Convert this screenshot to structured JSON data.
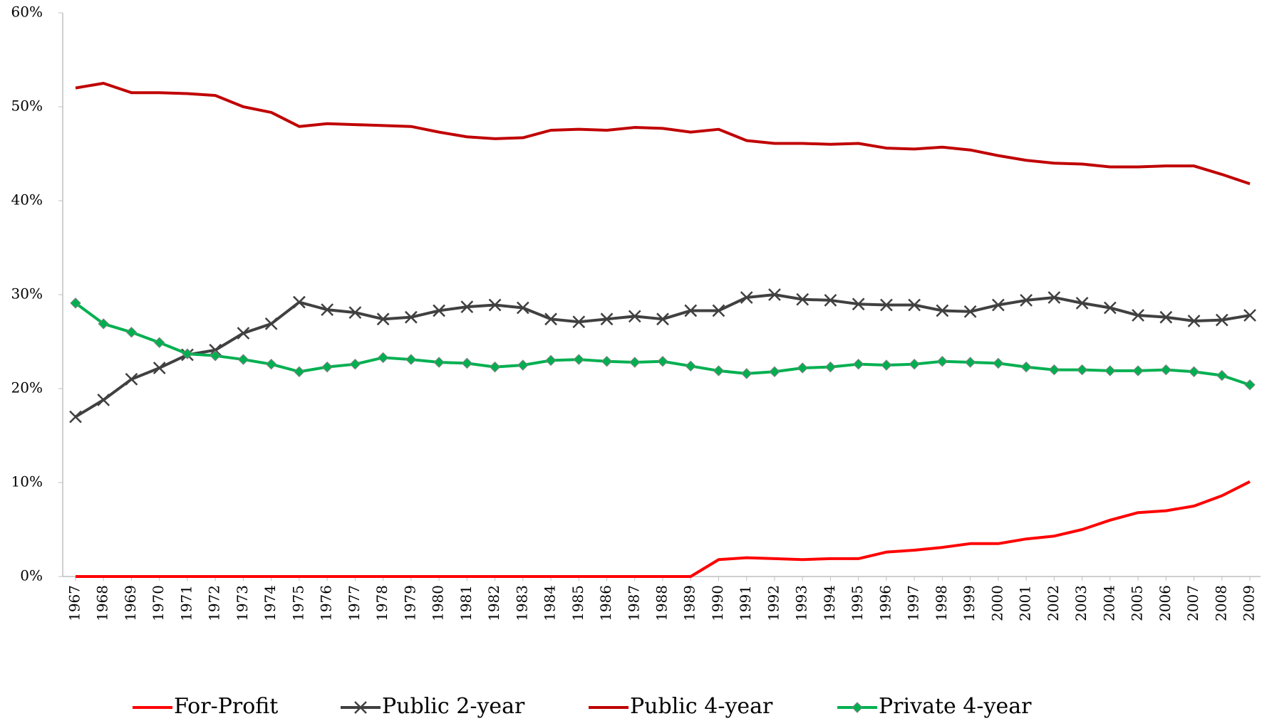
{
  "chart_data": {
    "type": "line",
    "categories": [
      "1967",
      "1968",
      "1969",
      "1970",
      "1971",
      "1972",
      "1973",
      "1974",
      "1975",
      "1976",
      "1977",
      "1978",
      "1979",
      "1980",
      "1981",
      "1982",
      "1983",
      "1984",
      "1985",
      "1986",
      "1987",
      "1988",
      "1989",
      "1990",
      "1991",
      "1992",
      "1993",
      "1994",
      "1995",
      "1996",
      "1997",
      "1998",
      "1999",
      "2000",
      "2001",
      "2002",
      "2003",
      "2004",
      "2005",
      "2006",
      "2007",
      "2008",
      "2009"
    ],
    "series": [
      {
        "name": "For-Profit",
        "color": "#ff0000",
        "marker": "none",
        "values": [
          0,
          0,
          0,
          0,
          0,
          0,
          0,
          0,
          0,
          0,
          0,
          0,
          0,
          0,
          0,
          0,
          0,
          0,
          0,
          0,
          0,
          0,
          0,
          1.8,
          2.0,
          1.9,
          1.8,
          1.9,
          1.9,
          2.6,
          2.8,
          3.1,
          3.5,
          3.5,
          4.0,
          4.3,
          5.0,
          6.0,
          6.8,
          7.0,
          7.5,
          8.6,
          10.1
        ]
      },
      {
        "name": "Public 2-year",
        "color": "#404040",
        "marker": "x",
        "values": [
          17.0,
          18.8,
          21.0,
          22.2,
          23.6,
          24.1,
          25.9,
          26.9,
          29.2,
          28.4,
          28.1,
          27.4,
          27.6,
          28.3,
          28.7,
          28.9,
          28.6,
          27.4,
          27.1,
          27.4,
          27.7,
          27.4,
          28.3,
          28.3,
          29.7,
          30.0,
          29.5,
          29.4,
          29.0,
          28.9,
          28.9,
          28.3,
          28.2,
          28.9,
          29.4,
          29.7,
          29.1,
          28.6,
          27.8,
          27.6,
          27.2,
          27.3,
          27.8
        ]
      },
      {
        "name": "Public 4-year",
        "color": "#c00000",
        "marker": "none",
        "values": [
          52.0,
          52.5,
          51.5,
          51.5,
          51.4,
          51.2,
          50.0,
          49.4,
          47.9,
          48.2,
          48.1,
          48.0,
          47.9,
          47.3,
          46.8,
          46.6,
          46.7,
          47.5,
          47.6,
          47.5,
          47.8,
          47.7,
          47.3,
          47.6,
          46.4,
          46.1,
          46.1,
          46.0,
          46.1,
          45.6,
          45.5,
          45.7,
          45.4,
          44.8,
          44.3,
          44.0,
          43.9,
          43.6,
          43.6,
          43.7,
          43.7,
          42.8,
          41.8
        ]
      },
      {
        "name": "Private 4-year",
        "color": "#00b050",
        "marker": "diamond",
        "values": [
          29.1,
          26.9,
          26.0,
          24.9,
          23.7,
          23.5,
          23.1,
          22.6,
          21.8,
          22.3,
          22.6,
          23.3,
          23.1,
          22.8,
          22.7,
          22.3,
          22.5,
          23.0,
          23.1,
          22.9,
          22.8,
          22.9,
          22.4,
          21.9,
          21.6,
          21.8,
          22.2,
          22.3,
          22.6,
          22.5,
          22.6,
          22.9,
          22.8,
          22.7,
          22.3,
          22.0,
          22.0,
          21.9,
          21.9,
          22.0,
          21.8,
          21.4,
          20.4
        ]
      }
    ],
    "ylim": [
      0,
      60
    ],
    "yticks": [
      {
        "value": 0,
        "label": "0%"
      },
      {
        "value": 10,
        "label": "10%"
      },
      {
        "value": 20,
        "label": "20%"
      },
      {
        "value": 30,
        "label": "30%"
      },
      {
        "value": 40,
        "label": "40%"
      },
      {
        "value": 50,
        "label": "50%"
      },
      {
        "value": 60,
        "label": "60%"
      }
    ],
    "legend": "bottom"
  }
}
